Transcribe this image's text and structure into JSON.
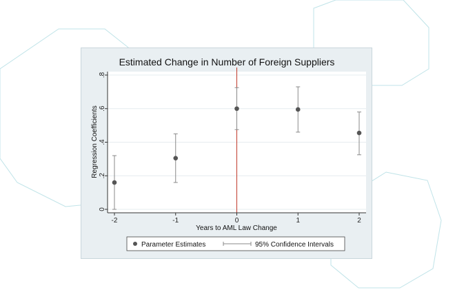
{
  "chart_data": {
    "type": "scatter",
    "title": "Estimated Change in Number of Foreign Suppliers",
    "xlabel": "Years to AML Law Change",
    "ylabel": "Regression Coefficients",
    "x_ticks": [
      "-2",
      "-1",
      "0",
      "1",
      "2"
    ],
    "y_ticks": [
      "0",
      ".2",
      ".4",
      ".6",
      ".8"
    ],
    "xlim": [
      -2,
      2
    ],
    "ylim": [
      0,
      0.8
    ],
    "grid": true,
    "reference_line": {
      "x": 0,
      "color": "#c0392b"
    },
    "series": [
      {
        "name": "Parameter Estimates",
        "x": [
          -2,
          -1,
          0,
          1,
          2
        ],
        "y": [
          0.16,
          0.305,
          0.6,
          0.595,
          0.455
        ],
        "color": "#555555"
      },
      {
        "name": "95% Confidence Intervals",
        "x": [
          -2,
          -1,
          0,
          1,
          2
        ],
        "low": [
          0.0,
          0.16,
          0.475,
          0.46,
          0.325
        ],
        "high": [
          0.32,
          0.45,
          0.725,
          0.73,
          0.58
        ],
        "color": "#888888"
      }
    ],
    "legend_position": "bottom"
  }
}
